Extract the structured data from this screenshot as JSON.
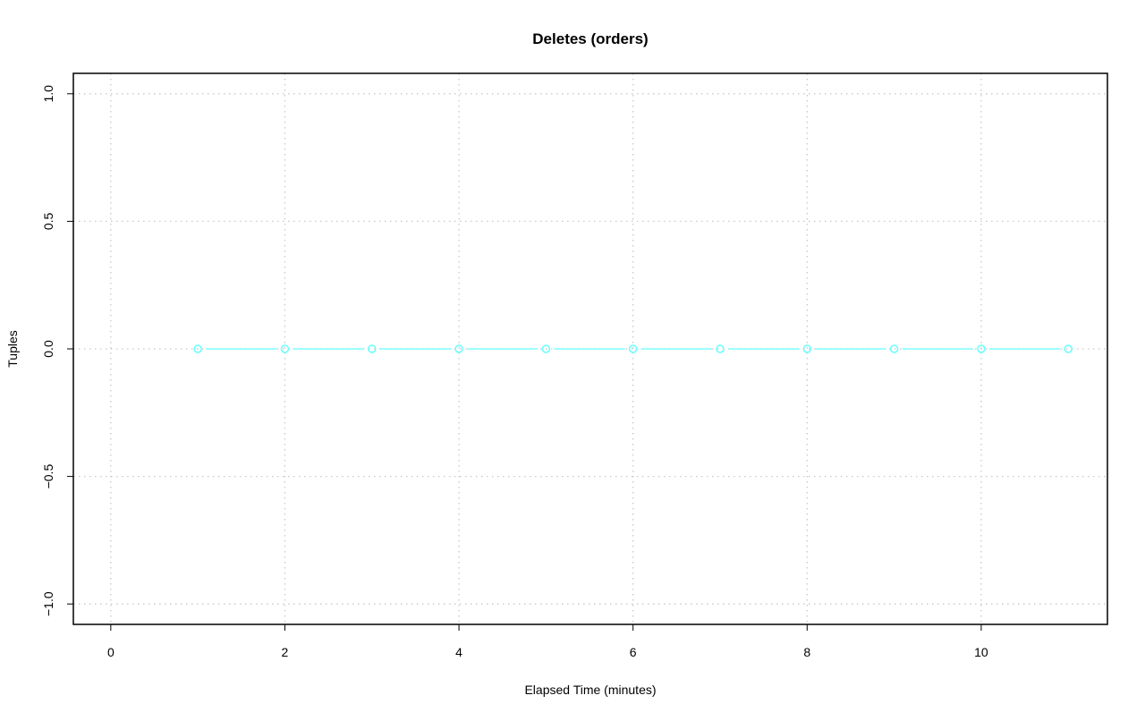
{
  "chart_data": {
    "type": "line",
    "title": "Deletes (orders)",
    "xlabel": "Elapsed Time (minutes)",
    "ylabel": "Tuples",
    "xlim": [
      -0.43,
      11.45
    ],
    "ylim": [
      -1.08,
      1.08
    ],
    "x_ticks": [
      0,
      2,
      4,
      6,
      8,
      10
    ],
    "x_tick_labels": [
      "0",
      "2",
      "4",
      "6",
      "8",
      "10"
    ],
    "y_ticks": [
      -1.0,
      -0.5,
      0.0,
      0.5,
      1.0
    ],
    "y_tick_labels": [
      "−1.0",
      "−0.5",
      "0.0",
      "0.5",
      "1.0"
    ],
    "grid": true,
    "series": [
      {
        "color": "#66ffff",
        "marker": "open-circle",
        "x": [
          1,
          2,
          3,
          4,
          5,
          6,
          7,
          8,
          9,
          10,
          11
        ],
        "y": [
          0,
          0,
          0,
          0,
          0,
          0,
          0,
          0,
          0,
          0,
          0
        ]
      }
    ]
  }
}
